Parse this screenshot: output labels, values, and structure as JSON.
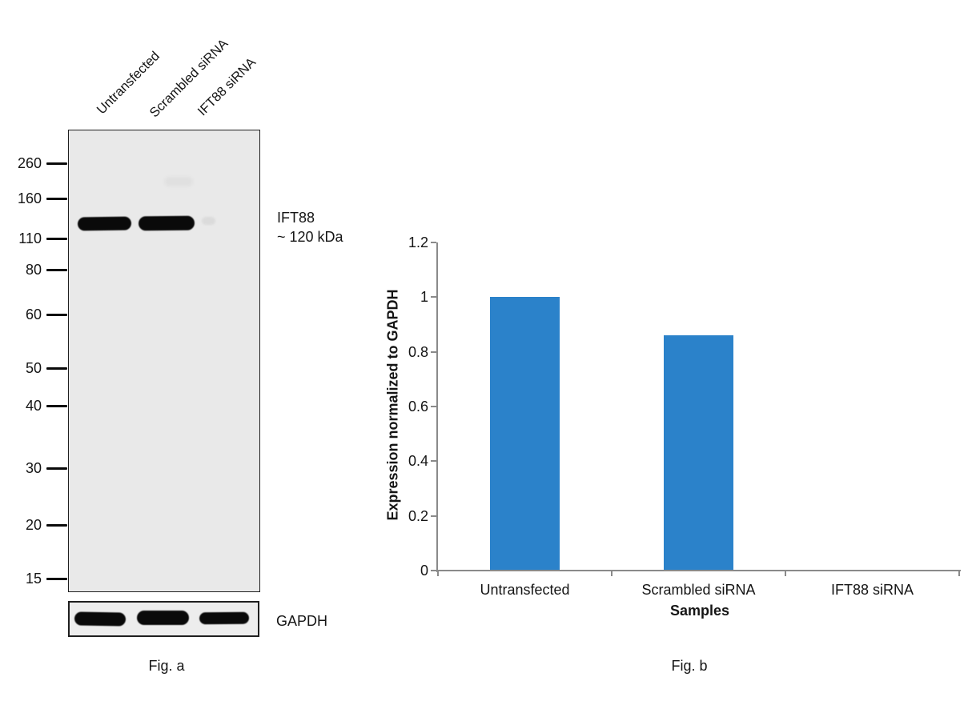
{
  "figure_a": {
    "caption": "Fig. a",
    "lane_labels": [
      "Untransfected",
      "Scrambled siRNA",
      "IFT88 siRNA"
    ],
    "ladder_kda": [
      "260",
      "160",
      "110",
      "80",
      "60",
      "50",
      "40",
      "30",
      "20",
      "15"
    ],
    "target_annotation": {
      "line1": "IFT88",
      "line2": "~ 120 kDa"
    },
    "loading_control_label": "GAPDH",
    "bands": {
      "ift88_lanes_with_band": [
        "Untransfected",
        "Scrambled siRNA"
      ],
      "ift88_lanes_without_band": [
        "IFT88 siRNA"
      ],
      "gapdh_lanes_with_band": [
        "Untransfected",
        "Scrambled siRNA",
        "IFT88 siRNA"
      ]
    },
    "colors": {
      "blot_background": "#e9e9e9",
      "band": "#0a0a0a"
    }
  },
  "figure_b": {
    "caption": "Fig. b"
  },
  "chart_data": {
    "type": "bar",
    "categories": [
      "Untransfected",
      "Scrambled siRNA",
      "IFT88 siRNA"
    ],
    "values": [
      1.0,
      0.86,
      0
    ],
    "title": "",
    "xlabel": "Samples",
    "ylabel": "Expression normalized to GAPDH",
    "ylim": [
      0,
      1.2
    ],
    "yticks": [
      "0",
      "0.2",
      "0.4",
      "0.6",
      "0.8",
      "1",
      "1.2"
    ],
    "ytick_values": [
      0,
      0.2,
      0.4,
      0.6,
      0.8,
      1,
      1.2
    ],
    "grid": false,
    "legend": false,
    "bar_color": "#2b82ca",
    "axis_color": "#8a8a8a",
    "bar_width_fraction": 0.4
  }
}
